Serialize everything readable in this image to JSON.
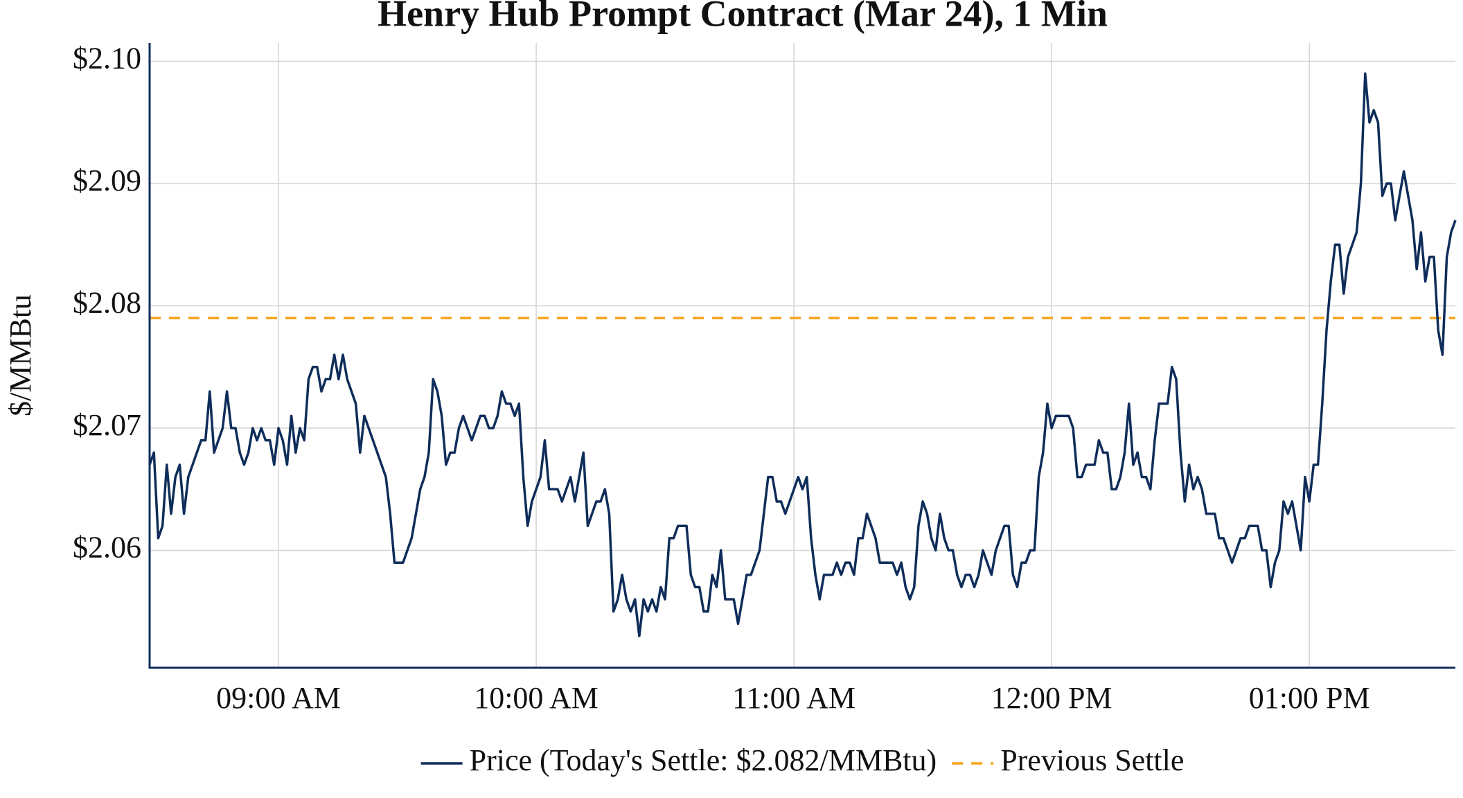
{
  "chart_data": {
    "type": "line",
    "title": "Henry Hub Prompt Contract (Mar 24), 1 Min",
    "y_label": "$/MMBtu",
    "xlim": [
      510,
      814
    ],
    "ylim": [
      2.0504,
      2.1015
    ],
    "xticks": [
      {
        "value": 540,
        "label": "09:00 AM"
      },
      {
        "value": 600,
        "label": "10:00 AM"
      },
      {
        "value": 660,
        "label": "11:00 AM"
      },
      {
        "value": 720,
        "label": "12:00 PM"
      },
      {
        "value": 780,
        "label": "01:00 PM"
      }
    ],
    "yticks": [
      {
        "value": 2.06,
        "label": "$2.06"
      },
      {
        "value": 2.07,
        "label": "$2.07"
      },
      {
        "value": 2.08,
        "label": "$2.08"
      },
      {
        "value": 2.09,
        "label": "$2.09"
      },
      {
        "value": 2.1,
        "label": "$2.10"
      }
    ],
    "grid": true,
    "series": [
      {
        "name": "Price (Today's Settle: $2.082/MMBtu)",
        "color": "#0f2d5a",
        "x": [
          510,
          511,
          512,
          513,
          514,
          515,
          516,
          517,
          518,
          519,
          522,
          523,
          524,
          525,
          527,
          528,
          529,
          530,
          531,
          532,
          533,
          534,
          535,
          536,
          537,
          538,
          539,
          540,
          541,
          542,
          543,
          544,
          545,
          546,
          547,
          548,
          549,
          550,
          551,
          552,
          553,
          554,
          555,
          556,
          558,
          559,
          560,
          565,
          566,
          567,
          569,
          571,
          573,
          574,
          575,
          576,
          577,
          578,
          579,
          580,
          581,
          582,
          583,
          585,
          586,
          587,
          588,
          589,
          590,
          591,
          592,
          593,
          594,
          595,
          596,
          597,
          598,
          599,
          601,
          602,
          603,
          605,
          606,
          607,
          608,
          609,
          611,
          612,
          614,
          615,
          616,
          617,
          618,
          619,
          620,
          621,
          622,
          623,
          624,
          625,
          626,
          627,
          628,
          629,
          630,
          631,
          632,
          633,
          635,
          636,
          637,
          638,
          639,
          640,
          641,
          642,
          643,
          644,
          646,
          647,
          648,
          649,
          650,
          652,
          654,
          655,
          656,
          657,
          658,
          660,
          661,
          662,
          663,
          664,
          665,
          666,
          667,
          668,
          669,
          670,
          671,
          672,
          673,
          674,
          675,
          676,
          677,
          678,
          679,
          680,
          683,
          684,
          685,
          686,
          687,
          688,
          689,
          690,
          691,
          692,
          693,
          694,
          695,
          696,
          697,
          698,
          699,
          700,
          701,
          702,
          703,
          704,
          706,
          707,
          709,
          710,
          711,
          712,
          713,
          714,
          715,
          716,
          717,
          718,
          719,
          720,
          721,
          724,
          725,
          726,
          727,
          728,
          730,
          731,
          732,
          733,
          734,
          735,
          736,
          737,
          738,
          739,
          740,
          741,
          742,
          743,
          744,
          745,
          747,
          748,
          749,
          750,
          751,
          752,
          753,
          754,
          755,
          756,
          758,
          759,
          760,
          761,
          762,
          764,
          765,
          766,
          768,
          769,
          770,
          771,
          772,
          773,
          774,
          775,
          776,
          777,
          778,
          779,
          780,
          781,
          782,
          783,
          784,
          785,
          786,
          787,
          788,
          789,
          791,
          792,
          793,
          794,
          795,
          796,
          797,
          798,
          799,
          800,
          801,
          802,
          804,
          805,
          806,
          807,
          808,
          809,
          810,
          811,
          812,
          813,
          814
        ],
        "values": [
          2.067,
          2.068,
          2.061,
          2.062,
          2.067,
          2.063,
          2.066,
          2.067,
          2.063,
          2.066,
          2.069,
          2.069,
          2.073,
          2.068,
          2.07,
          2.073,
          2.07,
          2.07,
          2.068,
          2.067,
          2.068,
          2.07,
          2.069,
          2.07,
          2.069,
          2.069,
          2.067,
          2.07,
          2.069,
          2.067,
          2.071,
          2.068,
          2.07,
          2.069,
          2.074,
          2.075,
          2.075,
          2.073,
          2.074,
          2.074,
          2.076,
          2.074,
          2.076,
          2.074,
          2.072,
          2.068,
          2.071,
          2.066,
          2.063,
          2.059,
          2.059,
          2.061,
          2.065,
          2.066,
          2.068,
          2.074,
          2.073,
          2.071,
          2.067,
          2.068,
          2.068,
          2.07,
          2.071,
          2.069,
          2.07,
          2.071,
          2.071,
          2.07,
          2.07,
          2.071,
          2.073,
          2.072,
          2.072,
          2.071,
          2.072,
          2.066,
          2.062,
          2.064,
          2.066,
          2.069,
          2.065,
          2.065,
          2.064,
          2.065,
          2.066,
          2.064,
          2.068,
          2.062,
          2.064,
          2.064,
          2.065,
          2.063,
          2.055,
          2.056,
          2.058,
          2.056,
          2.055,
          2.056,
          2.053,
          2.056,
          2.055,
          2.056,
          2.055,
          2.057,
          2.056,
          2.061,
          2.061,
          2.062,
          2.062,
          2.058,
          2.057,
          2.057,
          2.055,
          2.055,
          2.058,
          2.057,
          2.06,
          2.056,
          2.056,
          2.054,
          2.056,
          2.058,
          2.058,
          2.06,
          2.066,
          2.066,
          2.064,
          2.064,
          2.063,
          2.065,
          2.066,
          2.065,
          2.066,
          2.061,
          2.058,
          2.056,
          2.058,
          2.058,
          2.058,
          2.059,
          2.058,
          2.059,
          2.059,
          2.058,
          2.061,
          2.061,
          2.063,
          2.062,
          2.061,
          2.059,
          2.059,
          2.058,
          2.059,
          2.057,
          2.056,
          2.057,
          2.062,
          2.064,
          2.063,
          2.061,
          2.06,
          2.063,
          2.061,
          2.06,
          2.06,
          2.058,
          2.057,
          2.058,
          2.058,
          2.057,
          2.058,
          2.06,
          2.058,
          2.06,
          2.062,
          2.062,
          2.058,
          2.057,
          2.059,
          2.059,
          2.06,
          2.06,
          2.066,
          2.068,
          2.072,
          2.07,
          2.071,
          2.071,
          2.07,
          2.066,
          2.066,
          2.067,
          2.067,
          2.069,
          2.068,
          2.068,
          2.065,
          2.065,
          2.066,
          2.068,
          2.072,
          2.067,
          2.068,
          2.066,
          2.066,
          2.065,
          2.069,
          2.072,
          2.072,
          2.075,
          2.074,
          2.068,
          2.064,
          2.067,
          2.065,
          2.066,
          2.065,
          2.063,
          2.063,
          2.061,
          2.061,
          2.06,
          2.059,
          2.061,
          2.061,
          2.062,
          2.062,
          2.06,
          2.06,
          2.057,
          2.059,
          2.06,
          2.064,
          2.063,
          2.064,
          2.062,
          2.06,
          2.066,
          2.064,
          2.067,
          2.067,
          2.072,
          2.078,
          2.082,
          2.085,
          2.085,
          2.081,
          2.084,
          2.086,
          2.09,
          2.099,
          2.095,
          2.096,
          2.095,
          2.089,
          2.09,
          2.09,
          2.087,
          2.089,
          2.091,
          2.087,
          2.083,
          2.086,
          2.082,
          2.084,
          2.084,
          2.078,
          2.076,
          2.084,
          2.086,
          2.087
        ]
      }
    ],
    "reference_lines": [
      {
        "name": "Previous Settle",
        "value": 2.079,
        "color": "#f7a21b",
        "dashed": true
      }
    ]
  }
}
